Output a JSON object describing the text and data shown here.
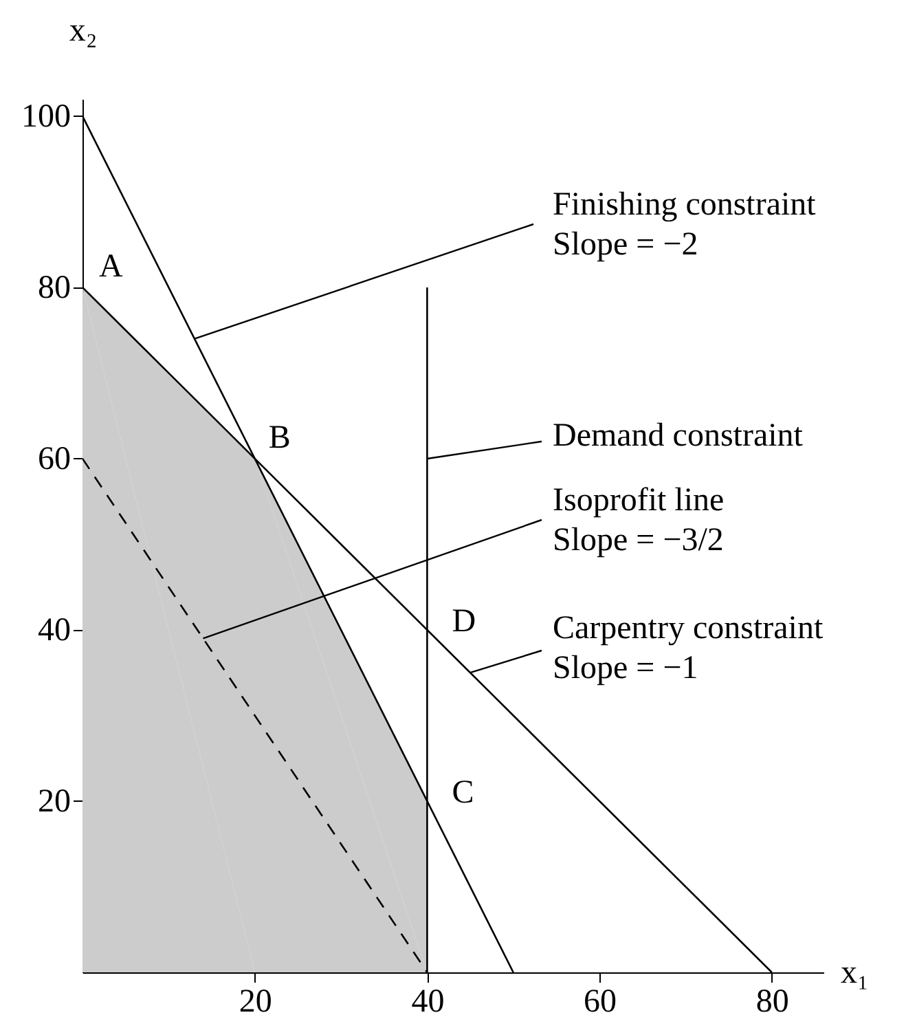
{
  "chart_data": {
    "type": "line",
    "xlabel": "x₁",
    "ylabel": "x₂",
    "xlim": [
      0,
      86
    ],
    "ylim": [
      0,
      102
    ],
    "xticks": [
      20,
      40,
      60,
      80
    ],
    "yticks": [
      20,
      40,
      60,
      80,
      100
    ],
    "grid": false,
    "marker": "none",
    "series": [
      {
        "type": "area",
        "color": "#cccccc",
        "x": [
          0,
          20,
          40
        ],
        "values": [
          80,
          60,
          20
        ]
      },
      {
        "color": "#000000",
        "x": [
          0,
          50
        ],
        "values": [
          100,
          0
        ]
      },
      {
        "color": "#000000",
        "x": [
          0,
          80
        ],
        "values": [
          80,
          0
        ]
      },
      {
        "color": "#000000",
        "x": [
          40,
          40,
          40
        ],
        "values": [
          0,
          20,
          80
        ]
      },
      {
        "color": "#000000",
        "x": [
          0,
          40
        ],
        "values": [
          60,
          0
        ],
        "line_style": "dashed"
      }
    ],
    "annotations": [
      {
        "text": "A",
        "x": 0,
        "y": 80
      },
      {
        "text": "B",
        "x": 20,
        "y": 60
      },
      {
        "text": "C",
        "x": 40,
        "y": 20
      },
      {
        "text": "D",
        "x": 40,
        "y": 40
      },
      {
        "text": "Finishing constraint\nSlope = −2",
        "x": 13,
        "y": 74
      },
      {
        "text": "Demand constraint",
        "x": 40,
        "y": 60
      },
      {
        "text": "Isoprofit line\nSlope = −3/2",
        "x": 14,
        "y": 39
      },
      {
        "text": "Carpentry constraint\nSlope = −1",
        "x": 45,
        "y": 35
      }
    ]
  }
}
